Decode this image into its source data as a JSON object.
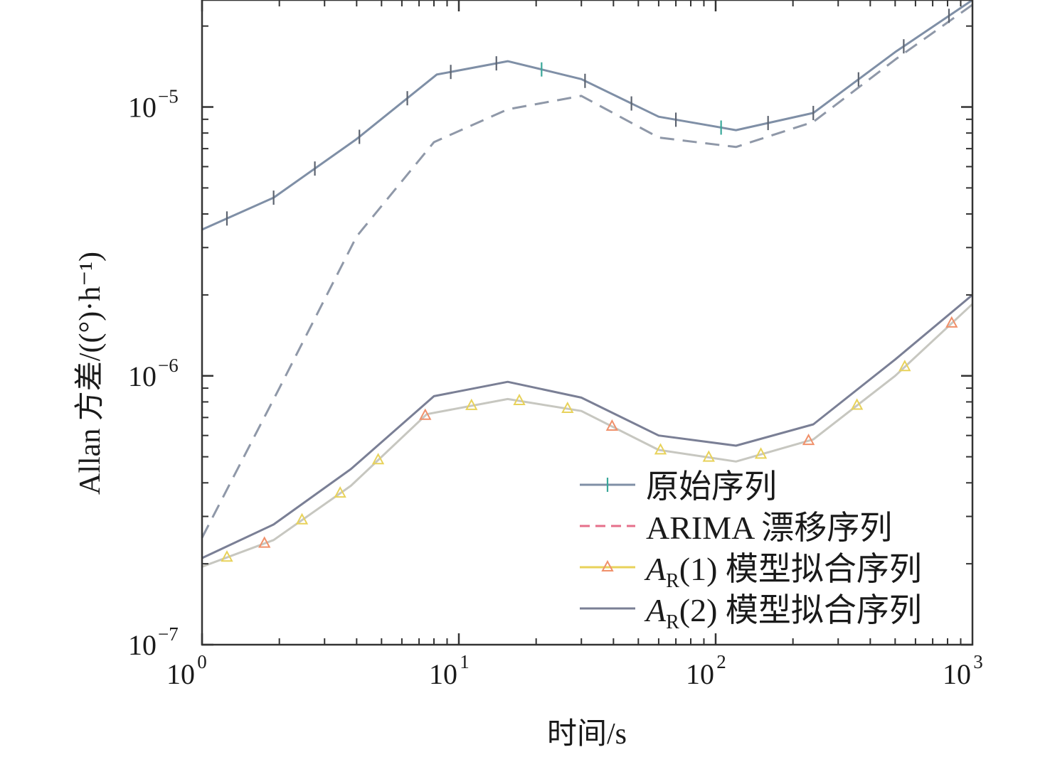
{
  "chart_data": {
    "type": "line",
    "xscale": "log",
    "yscale": "log",
    "xlim": [
      1,
      1000
    ],
    "ylim": [
      1e-07,
      2.5e-05
    ],
    "xlabel": "时间/s",
    "ylabel": "Allan 方差/((°)·h⁻¹)",
    "grid": false,
    "legend_position": "bottom-right",
    "x_ticks": [
      {
        "base": "10",
        "exp": "0"
      },
      {
        "base": "10",
        "exp": "1"
      },
      {
        "base": "10",
        "exp": "2"
      },
      {
        "base": "10",
        "exp": "3"
      }
    ],
    "y_ticks": [
      {
        "base": "10",
        "exp": "−7"
      },
      {
        "base": "10",
        "exp": "−6"
      },
      {
        "base": "10",
        "exp": "−5"
      }
    ],
    "series": [
      {
        "name": "原始序列",
        "color": "#7f8fa6",
        "marker": "plus",
        "marker_color": "#3aa89a",
        "dash": "solid",
        "x": [
          1,
          1.9,
          4,
          8.2,
          15.5,
          30,
          60,
          120,
          240,
          500,
          1000
        ],
        "y": [
          3.5e-06,
          4.6e-06,
          7.6e-06,
          1.32e-05,
          1.48e-05,
          1.27e-05,
          9.2e-06,
          8.2e-06,
          9.5e-06,
          1.6e-05,
          2.5e-05
        ]
      },
      {
        "name": "ARIMA 漂移序列",
        "color": "#8f98a8",
        "legend_color": "#e66f8a",
        "marker": "none",
        "dash": "dashed",
        "x": [
          1,
          2,
          4,
          8,
          15.5,
          30,
          60,
          120,
          240,
          500,
          1000
        ],
        "y": [
          2.5e-07,
          9e-07,
          3.3e-06,
          7.4e-06,
          9.8e-06,
          1.1e-05,
          7.7e-06,
          7.1e-06,
          8.8e-06,
          1.5e-05,
          2.4e-05
        ]
      },
      {
        "name": "A_R(1) 模型拟合序列",
        "name_main": "A",
        "name_sub": "R",
        "name_rest": "(1) 模型拟合序列",
        "color": "#c7c7c0",
        "marker": "triangle",
        "marker_color": "#e8d25a",
        "legend_marker_color": "#f0906a",
        "legend_line_color": "#e8d25a",
        "dash": "solid",
        "x": [
          1,
          1.9,
          3.8,
          7.5,
          15.5,
          30,
          60,
          120,
          240,
          500,
          1000
        ],
        "y": [
          1.95e-07,
          2.45e-07,
          3.9e-07,
          7.2e-07,
          8.2e-07,
          7.4e-07,
          5.3e-07,
          4.8e-07,
          5.8e-07,
          1e-06,
          1.85e-06
        ]
      },
      {
        "name": "A_R(2) 模型拟合序列",
        "name_main": "A",
        "name_sub": "R",
        "name_rest": "(2) 模型拟合序列",
        "color": "#7a7f95",
        "marker": "none",
        "dash": "solid",
        "x": [
          1,
          1.9,
          3.8,
          8,
          15.5,
          30,
          60,
          120,
          240,
          500,
          1000
        ],
        "y": [
          2.1e-07,
          2.8e-07,
          4.5e-07,
          8.4e-07,
          9.5e-07,
          8.3e-07,
          6e-07,
          5.5e-07,
          6.6e-07,
          1.15e-06,
          2e-06
        ]
      }
    ],
    "markers": {
      "s0_x": [
        1.25,
        1.9,
        2.75,
        4.1,
        6.3,
        9.3,
        14,
        21,
        31,
        47,
        70,
        105,
        160,
        240,
        360,
        540,
        810
      ],
      "s2_x": [
        1.25,
        1.75,
        2.45,
        3.45,
        4.85,
        7.4,
        11.2,
        17.2,
        26.5,
        39.5,
        61,
        94,
        150,
        230,
        355,
        545,
        830
      ]
    }
  }
}
